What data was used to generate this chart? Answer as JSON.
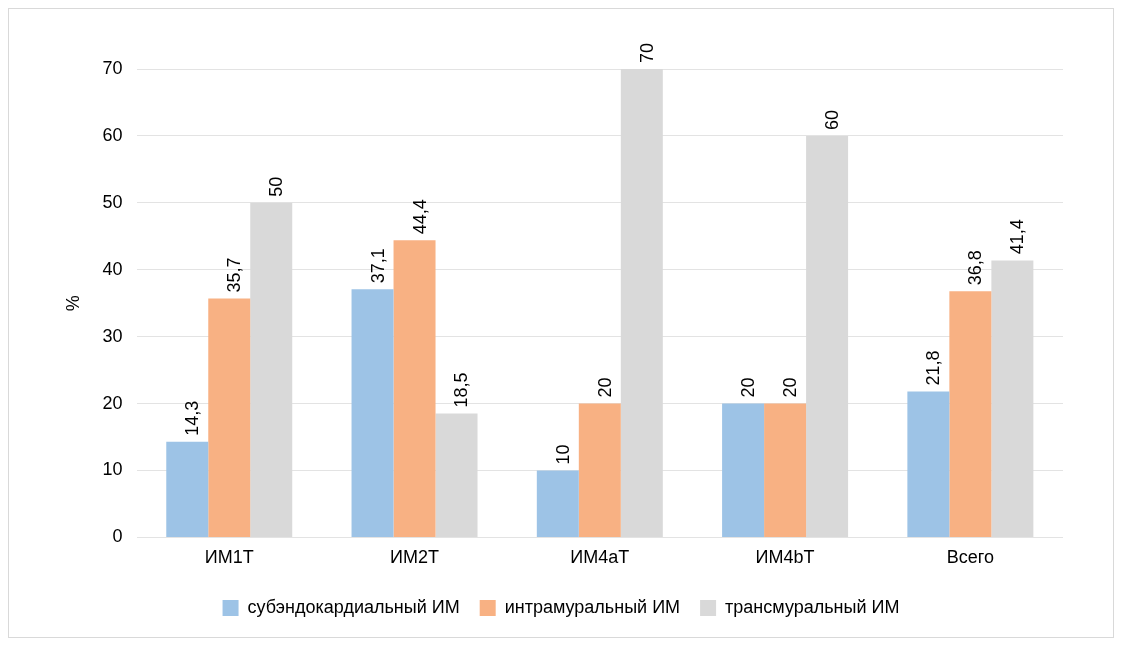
{
  "chart_data": {
    "type": "bar",
    "ylabel": "%",
    "categories": [
      "ИМ1Т",
      "ИМ2Т",
      "ИМ4аТ",
      "ИМ4bТ",
      "Всего"
    ],
    "series": [
      {
        "name": "субэндокардиальный ИМ",
        "color": "#9dc3e6",
        "values": [
          14.3,
          37.1,
          10,
          20,
          21.8
        ],
        "value_labels": [
          "14,3",
          "37,1",
          "10",
          "20",
          "21,8"
        ]
      },
      {
        "name": "интрамуральный ИМ",
        "color": "#f8b183",
        "values": [
          35.7,
          44.4,
          20,
          20,
          36.8
        ],
        "value_labels": [
          "35,7",
          "44,4",
          "20",
          "20",
          "36,8"
        ]
      },
      {
        "name": "трансмуральный ИМ",
        "color": "#d9d9d9",
        "values": [
          50,
          18.5,
          70,
          60,
          41.4
        ],
        "value_labels": [
          "50",
          "18,5",
          "70",
          "60",
          "41,4"
        ]
      }
    ],
    "ylim": [
      0,
      70
    ],
    "yticks": [
      0,
      10,
      20,
      30,
      40,
      50,
      60,
      70
    ],
    "grid": "y",
    "legend": "bottom"
  }
}
